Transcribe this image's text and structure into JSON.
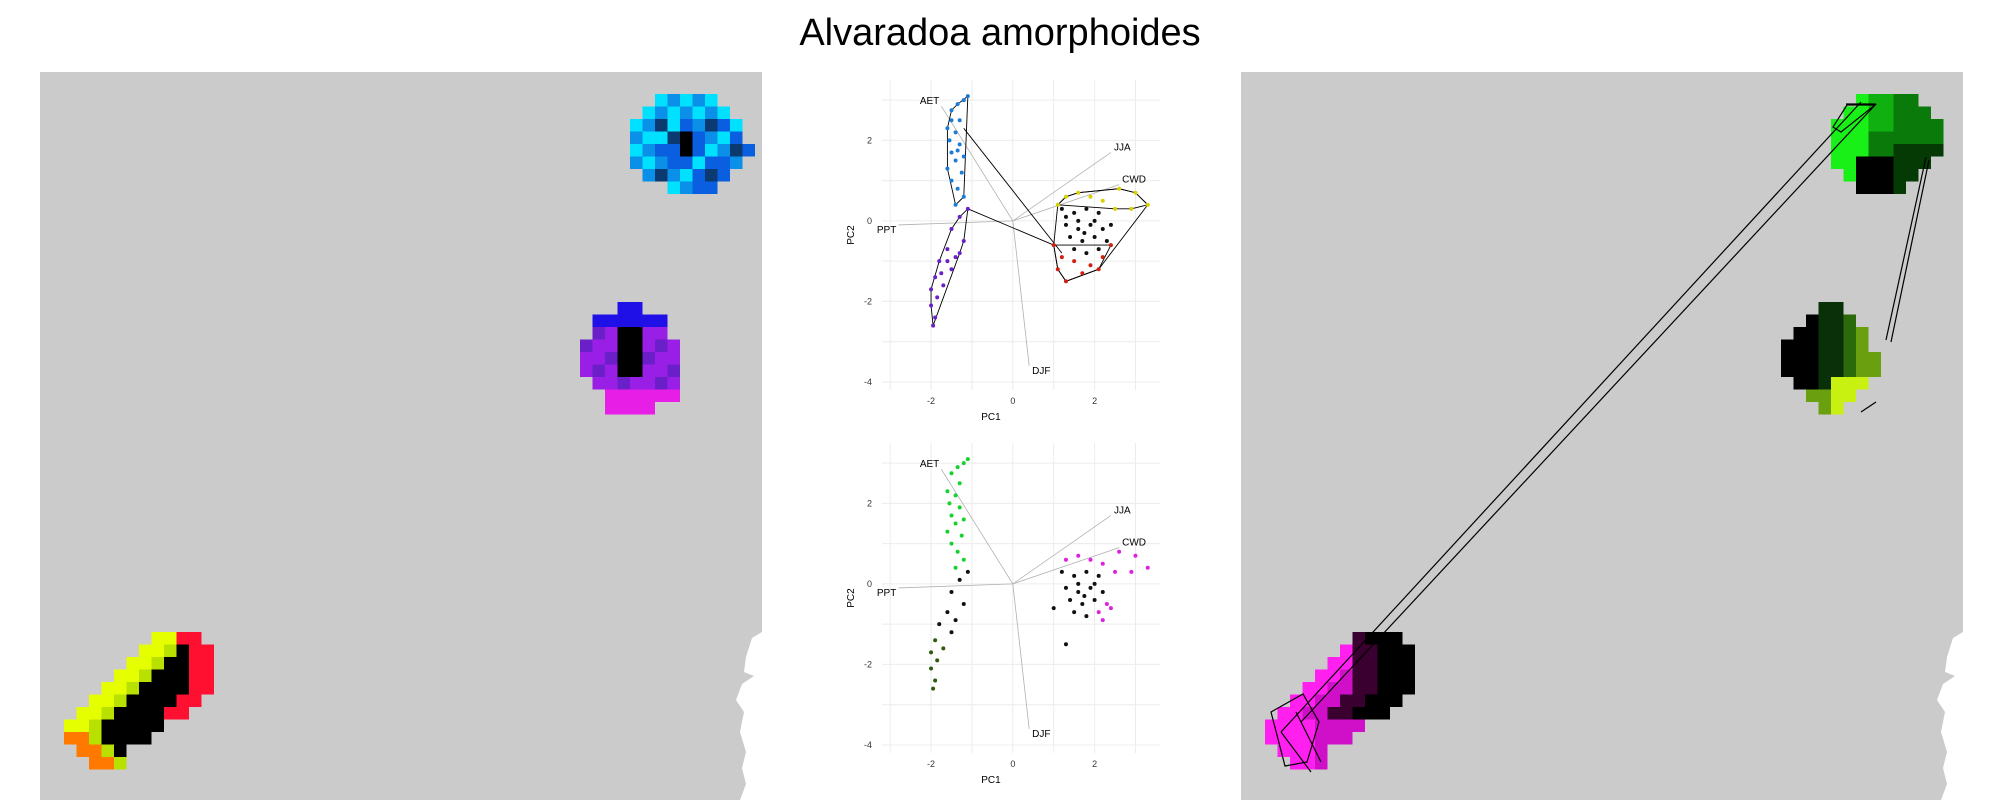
{
  "title": "Alvaradoa amorphoides",
  "colors": {
    "map_bg": "#cbcbcb",
    "cyan": "#00c8ff",
    "blue": "#0a5fe0",
    "purple": "#9a1fe6",
    "magenta": "#e61ee6",
    "yellow": "#e6ff00",
    "orange": "#ff7800",
    "red": "#ff1030",
    "green": "#18e018",
    "lime": "#b8f000"
  },
  "chart_data": [
    {
      "type": "scatter",
      "name": "pca-top",
      "xlabel": "PC1",
      "ylabel": "PC2",
      "xlim": [
        -3.2,
        3.6
      ],
      "ylim": [
        -4.2,
        3.5
      ],
      "x_ticks": [
        "-2",
        "0",
        "2"
      ],
      "y_ticks": [
        "2",
        "0",
        "-2",
        "-4"
      ],
      "x_tick_values": [
        -2,
        0,
        2
      ],
      "y_tick_values": [
        2,
        0,
        -2,
        -4
      ],
      "grid": true,
      "hulls": true,
      "vectors": [
        {
          "label": "AET",
          "x": -1.75,
          "y": 2.85
        },
        {
          "label": "JJA",
          "x": 2.4,
          "y": 1.7
        },
        {
          "label": "CWD",
          "x": 2.6,
          "y": 0.9
        },
        {
          "label": "PPT",
          "x": -2.8,
          "y": -0.1
        },
        {
          "label": "DJF",
          "x": 0.4,
          "y": -3.6
        }
      ],
      "groups": [
        {
          "color": "#1c7cd6",
          "points": [
            [
              -1.1,
              3.1
            ],
            [
              -1.2,
              3.0
            ],
            [
              -1.35,
              2.9
            ],
            [
              -1.5,
              2.75
            ],
            [
              -1.3,
              2.5
            ],
            [
              -1.6,
              2.3
            ],
            [
              -1.4,
              2.2
            ],
            [
              -1.55,
              2.0
            ],
            [
              -1.3,
              1.9
            ],
            [
              -1.5,
              1.7
            ],
            [
              -1.2,
              1.6
            ],
            [
              -1.4,
              1.5
            ],
            [
              -1.6,
              1.3
            ],
            [
              -1.25,
              1.2
            ],
            [
              -1.5,
              1.0
            ],
            [
              -1.35,
              0.8
            ],
            [
              -1.2,
              0.6
            ],
            [
              -1.4,
              0.4
            ],
            [
              -1.5,
              2.5
            ],
            [
              -1.35,
              1.75
            ]
          ]
        },
        {
          "color": "#6a1fc8",
          "points": [
            [
              -1.1,
              0.3
            ],
            [
              -1.3,
              0.1
            ],
            [
              -1.5,
              -0.2
            ],
            [
              -1.2,
              -0.5
            ],
            [
              -1.6,
              -0.7
            ],
            [
              -1.4,
              -0.9
            ],
            [
              -1.8,
              -1.0
            ],
            [
              -1.5,
              -1.2
            ],
            [
              -1.9,
              -1.4
            ],
            [
              -1.7,
              -1.6
            ],
            [
              -2.0,
              -1.7
            ],
            [
              -1.85,
              -1.9
            ],
            [
              -2.0,
              -2.1
            ],
            [
              -1.9,
              -2.4
            ],
            [
              -1.95,
              -2.6
            ],
            [
              -1.6,
              -1.0
            ],
            [
              -1.3,
              -0.8
            ],
            [
              -1.75,
              -1.3
            ]
          ]
        },
        {
          "color": "#111111",
          "points": [
            [
              1.2,
              0.3
            ],
            [
              1.5,
              0.2
            ],
            [
              1.8,
              0.3
            ],
            [
              2.1,
              0.2
            ],
            [
              1.3,
              -0.1
            ],
            [
              1.6,
              -0.2
            ],
            [
              1.9,
              -0.1
            ],
            [
              2.2,
              -0.2
            ],
            [
              1.4,
              -0.4
            ],
            [
              1.7,
              -0.5
            ],
            [
              2.0,
              -0.4
            ],
            [
              2.3,
              -0.5
            ],
            [
              1.5,
              -0.7
            ],
            [
              1.8,
              -0.8
            ],
            [
              2.1,
              -0.7
            ],
            [
              1.6,
              0.0
            ],
            [
              2.0,
              0.0
            ],
            [
              1.3,
              0.1
            ],
            [
              1.75,
              -0.3
            ],
            [
              2.4,
              -0.1
            ]
          ]
        },
        {
          "color": "#d8d000",
          "points": [
            [
              1.3,
              0.6
            ],
            [
              1.6,
              0.7
            ],
            [
              1.9,
              0.6
            ],
            [
              2.2,
              0.5
            ],
            [
              2.6,
              0.8
            ],
            [
              3.0,
              0.7
            ],
            [
              3.3,
              0.4
            ],
            [
              2.9,
              0.3
            ],
            [
              2.5,
              0.3
            ],
            [
              1.1,
              0.4
            ]
          ]
        },
        {
          "color": "#d02010",
          "points": [
            [
              1.0,
              -0.6
            ],
            [
              1.2,
              -0.9
            ],
            [
              1.5,
              -1.0
            ],
            [
              1.9,
              -1.1
            ],
            [
              2.2,
              -0.9
            ],
            [
              2.4,
              -0.6
            ],
            [
              1.3,
              -1.5
            ],
            [
              1.7,
              -1.3
            ],
            [
              2.1,
              -1.2
            ],
            [
              1.1,
              -1.2
            ]
          ]
        }
      ]
    },
    {
      "type": "scatter",
      "name": "pca-bottom",
      "xlabel": "PC1",
      "ylabel": "PC2",
      "xlim": [
        -3.2,
        3.6
      ],
      "ylim": [
        -4.2,
        3.5
      ],
      "x_ticks": [
        "-2",
        "0",
        "2"
      ],
      "y_ticks": [
        "2",
        "0",
        "-2",
        "-4"
      ],
      "x_tick_values": [
        -2,
        0,
        2
      ],
      "y_tick_values": [
        2,
        0,
        -2,
        -4
      ],
      "grid": true,
      "hulls": false,
      "vectors": [
        {
          "label": "AET",
          "x": -1.75,
          "y": 2.85
        },
        {
          "label": "JJA",
          "x": 2.4,
          "y": 1.7
        },
        {
          "label": "CWD",
          "x": 2.6,
          "y": 0.9
        },
        {
          "label": "PPT",
          "x": -2.8,
          "y": -0.1
        },
        {
          "label": "DJF",
          "x": 0.4,
          "y": -3.6
        }
      ],
      "groups": [
        {
          "color": "#18d030",
          "points": [
            [
              -1.1,
              3.1
            ],
            [
              -1.2,
              3.0
            ],
            [
              -1.35,
              2.9
            ],
            [
              -1.5,
              2.75
            ],
            [
              -1.3,
              2.5
            ],
            [
              -1.6,
              2.3
            ],
            [
              -1.4,
              2.2
            ],
            [
              -1.55,
              2.0
            ],
            [
              -1.3,
              1.9
            ],
            [
              -1.5,
              1.7
            ],
            [
              -1.2,
              1.6
            ],
            [
              -1.4,
              1.5
            ],
            [
              -1.6,
              1.3
            ],
            [
              -1.25,
              1.2
            ],
            [
              -1.5,
              1.0
            ],
            [
              -1.35,
              0.8
            ],
            [
              -1.2,
              0.6
            ],
            [
              -1.4,
              0.4
            ]
          ]
        },
        {
          "color": "#111111",
          "points": [
            [
              -1.1,
              0.3
            ],
            [
              -1.3,
              0.1
            ],
            [
              -1.5,
              -0.2
            ],
            [
              -1.2,
              -0.5
            ],
            [
              -1.6,
              -0.7
            ],
            [
              -1.4,
              -0.9
            ],
            [
              -1.8,
              -1.0
            ],
            [
              -1.5,
              -1.2
            ],
            [
              1.2,
              0.3
            ],
            [
              1.5,
              0.2
            ],
            [
              1.8,
              0.3
            ],
            [
              2.1,
              0.2
            ],
            [
              1.3,
              -0.1
            ],
            [
              1.6,
              -0.2
            ],
            [
              1.9,
              -0.1
            ],
            [
              2.2,
              -0.2
            ],
            [
              1.4,
              -0.4
            ],
            [
              1.7,
              -0.5
            ],
            [
              2.0,
              -0.4
            ],
            [
              1.5,
              -0.7
            ],
            [
              1.8,
              -0.8
            ],
            [
              1.0,
              -0.6
            ],
            [
              1.3,
              -1.5
            ],
            [
              1.6,
              0.0
            ],
            [
              2.0,
              0.0
            ],
            [
              1.75,
              -0.3
            ]
          ]
        },
        {
          "color": "#2e5a10",
          "points": [
            [
              -1.9,
              -1.4
            ],
            [
              -1.7,
              -1.6
            ],
            [
              -2.0,
              -1.7
            ],
            [
              -1.85,
              -1.9
            ],
            [
              -2.0,
              -2.1
            ],
            [
              -1.9,
              -2.4
            ],
            [
              -1.95,
              -2.6
            ]
          ]
        },
        {
          "color": "#e020e0",
          "points": [
            [
              1.3,
              0.6
            ],
            [
              1.6,
              0.7
            ],
            [
              1.9,
              0.6
            ],
            [
              2.2,
              0.5
            ],
            [
              2.6,
              0.8
            ],
            [
              3.0,
              0.7
            ],
            [
              3.3,
              0.4
            ],
            [
              2.9,
              0.3
            ],
            [
              2.5,
              0.3
            ],
            [
              2.3,
              -0.5
            ],
            [
              2.1,
              -0.7
            ],
            [
              2.4,
              -0.6
            ],
            [
              2.2,
              -0.9
            ]
          ]
        }
      ]
    },
    {
      "type": "heatmap",
      "name": "left-map",
      "clusters": [
        {
          "region": "north-east",
          "hues": [
            "#00e0ff",
            "#0a90e8",
            "#0a5fe0",
            "#0b3a70",
            "#000000"
          ]
        },
        {
          "region": "east",
          "hues": [
            "#2010e8",
            "#6a1fc8",
            "#9a1fe6",
            "#e61ee6",
            "#000000"
          ]
        },
        {
          "region": "south-west",
          "hues": [
            "#e6ff00",
            "#b8e000",
            "#ff7800",
            "#ff1030",
            "#000000"
          ]
        }
      ]
    },
    {
      "type": "heatmap",
      "name": "right-map",
      "clusters": [
        {
          "region": "north-east",
          "hues": [
            "#18f018",
            "#10b010",
            "#0a7a0a",
            "#053a05",
            "#000000"
          ]
        },
        {
          "region": "east",
          "hues": [
            "#000000",
            "#0a300a",
            "#2a6a0a",
            "#6aa010",
            "#c8f010"
          ]
        },
        {
          "region": "south-west",
          "hues": [
            "#ff20f0",
            "#d010c8",
            "#8a0a80",
            "#3a0030",
            "#000000"
          ]
        }
      ]
    }
  ]
}
